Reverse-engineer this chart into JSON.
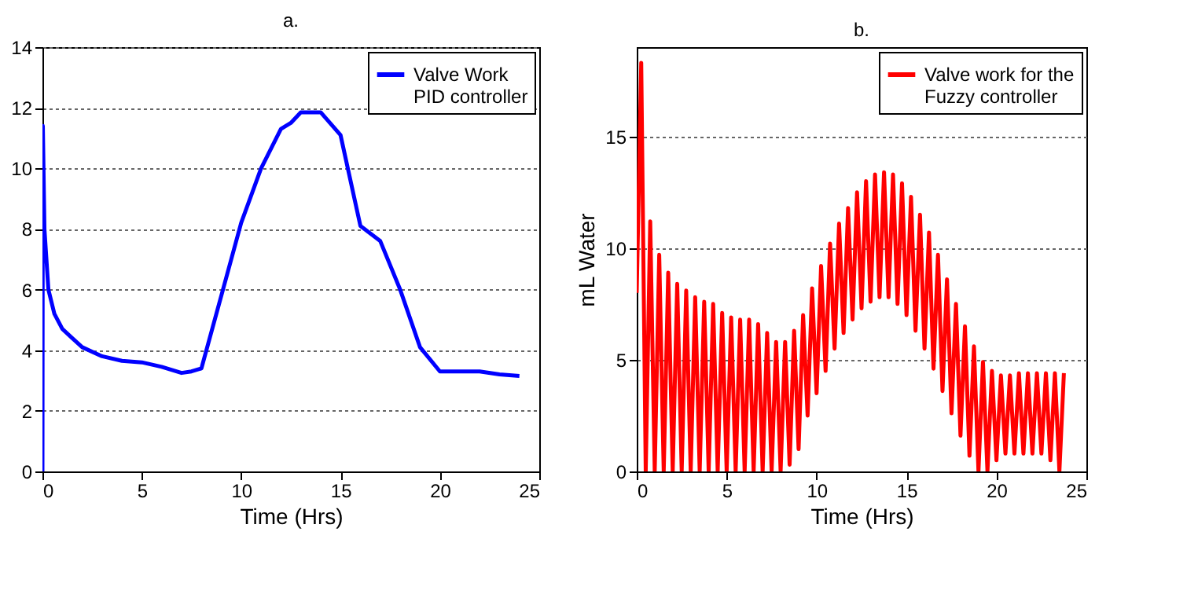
{
  "chart_data": [
    {
      "type": "line",
      "title": "a.",
      "xlabel": "Time (Hrs)",
      "xlim": [
        0,
        25
      ],
      "xticks": [
        0,
        5,
        10,
        15,
        20,
        25
      ],
      "ylim": [
        0,
        14
      ],
      "yticks": [
        0,
        2,
        4,
        6,
        8,
        10,
        12,
        14
      ],
      "grid": "y",
      "legend": "top right",
      "series": [
        {
          "name": "Valve Work\nPID controller",
          "color": "#0000ff",
          "x": [
            0,
            0.02,
            0.1,
            0.3,
            0.6,
            1,
            1.5,
            2,
            3,
            4,
            5,
            6,
            7,
            7.5,
            8,
            9,
            10,
            11,
            12,
            12.5,
            13,
            14,
            15,
            16,
            17,
            18,
            19,
            20,
            21,
            22,
            23,
            24
          ],
          "values": [
            0,
            11.4,
            8,
            6,
            5.2,
            4.7,
            4.4,
            4.1,
            3.8,
            3.65,
            3.6,
            3.45,
            3.25,
            3.3,
            3.4,
            5.8,
            8.2,
            10,
            11.3,
            11.5,
            11.85,
            11.85,
            11.1,
            8.1,
            7.6,
            6,
            4.1,
            3.3,
            3.3,
            3.3,
            3.2,
            3.15
          ]
        }
      ]
    },
    {
      "type": "line",
      "title": "b.",
      "xlabel": "Time (Hrs)",
      "ylabel": "mL Water",
      "xlim": [
        0,
        25
      ],
      "xticks": [
        0,
        5,
        10,
        15,
        20,
        25
      ],
      "ylim": [
        0,
        19
      ],
      "yticks": [
        0,
        5,
        10,
        15
      ],
      "grid": "y",
      "legend": "top right",
      "series": [
        {
          "name": "Valve work for the\nFuzzy controller",
          "color": "#ff0000",
          "x": [
            0,
            0.25,
            0.5,
            0.75,
            1,
            1.25,
            1.5,
            1.75,
            2,
            2.25,
            2.5,
            2.75,
            3,
            3.25,
            3.5,
            3.75,
            4,
            4.25,
            4.5,
            4.75,
            5,
            5.25,
            5.5,
            5.75,
            6,
            6.25,
            6.5,
            6.75,
            7,
            7.25,
            7.5,
            7.75,
            8,
            8.25,
            8.5,
            8.75,
            9,
            9.25,
            9.5,
            9.75,
            10,
            10.25,
            10.5,
            10.75,
            11,
            11.25,
            11.5,
            11.75,
            12,
            12.25,
            12.5,
            12.75,
            13,
            13.25,
            13.5,
            13.75,
            14,
            14.25,
            14.5,
            14.75,
            15,
            15.25,
            15.5,
            15.75,
            16,
            16.25,
            16.5,
            16.75,
            17,
            17.25,
            17.5,
            17.75,
            18,
            18.25,
            18.5,
            18.75,
            19,
            19.25,
            19.5,
            19.75,
            20,
            20.25,
            20.5,
            20.75,
            21,
            21.25,
            21.5,
            21.75,
            22,
            22.25,
            22.5,
            22.75,
            23,
            23.25,
            23.5,
            23.75
          ],
          "values": [
            8,
            18.3,
            0,
            11.2,
            0,
            9.7,
            0,
            8.9,
            0,
            8.4,
            0,
            8.1,
            0,
            7.8,
            0,
            7.6,
            0,
            7.5,
            0,
            7.1,
            0,
            6.9,
            0,
            6.8,
            0,
            6.8,
            0,
            6.6,
            0,
            6.2,
            0,
            5.8,
            0,
            5.8,
            0.3,
            6.3,
            1,
            7,
            2.5,
            8.2,
            3.5,
            9.2,
            4.5,
            10.2,
            5.5,
            11.1,
            6.2,
            11.8,
            6.8,
            12.5,
            7.3,
            13.0,
            7.6,
            13.3,
            7.8,
            13.4,
            7.8,
            13.3,
            7.5,
            12.9,
            7,
            12.3,
            6.3,
            11.5,
            5.5,
            10.7,
            4.6,
            9.7,
            3.6,
            8.6,
            2.6,
            7.5,
            1.6,
            6.5,
            0.7,
            5.6,
            0,
            4.9,
            0,
            4.5,
            0.5,
            4.3,
            0.8,
            4.3,
            0.8,
            4.4,
            0.8,
            4.4,
            0.8,
            4.4,
            0.8,
            4.4,
            0.5,
            4.4,
            0,
            4.4
          ]
        }
      ]
    }
  ]
}
